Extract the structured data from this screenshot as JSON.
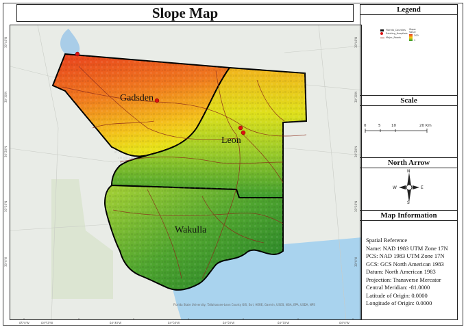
{
  "title": "Slope Map",
  "map": {
    "counties": [
      {
        "name": "Gadsden"
      },
      {
        "name": "Leon"
      },
      {
        "name": "Wakulla"
      }
    ],
    "attribution": "Florida State University, Tallahassee-Leon County GIS, Esri, HERE, Garmin, USGS, NGA, EPA, USDA, NPS",
    "lon_ticks": [
      "85°0'W",
      "84°50'W",
      "84°40'W",
      "84°30'W",
      "84°20'W",
      "84°10'W",
      "84°0'W"
    ],
    "lat_ticks": [
      "30°40'N",
      "30°30'N",
      "30°20'N",
      "30°10'N",
      "30°0'N"
    ]
  },
  "legend": {
    "heading": "Legend",
    "items": [
      {
        "label": "Florida_Counties",
        "symbol": "black-square"
      },
      {
        "label": "Existing_Hospitals",
        "symbol": "red-dot"
      },
      {
        "label": "Major_Roads",
        "symbol": "line"
      }
    ],
    "slope": {
      "title": "Slope",
      "subtitle": "Value",
      "high": "200",
      "low": "1",
      "colors": [
        "#e8351c",
        "#f7d117",
        "#2e9a2e"
      ]
    }
  },
  "scale": {
    "heading": "Scale",
    "ticks": [
      "0",
      "5",
      "10",
      "20 Km"
    ]
  },
  "north_arrow": {
    "heading": "North Arrow",
    "n": "N",
    "s": "S",
    "e": "E",
    "w": "W"
  },
  "map_info": {
    "heading": "Map Information",
    "lines": [
      "Spatial Reference",
      "Name: NAD 1983 UTM Zone 17N",
      "PCS: NAD 1983 UTM Zone 17N",
      "GCS: GCS North American 1983",
      "Datum: North American 1983",
      "Projection: Transverse Mercator",
      "Central Meridian: -81.0000",
      "Latitude of Origin: 0.0000",
      "Longitude of Origin: 0.0000"
    ]
  }
}
